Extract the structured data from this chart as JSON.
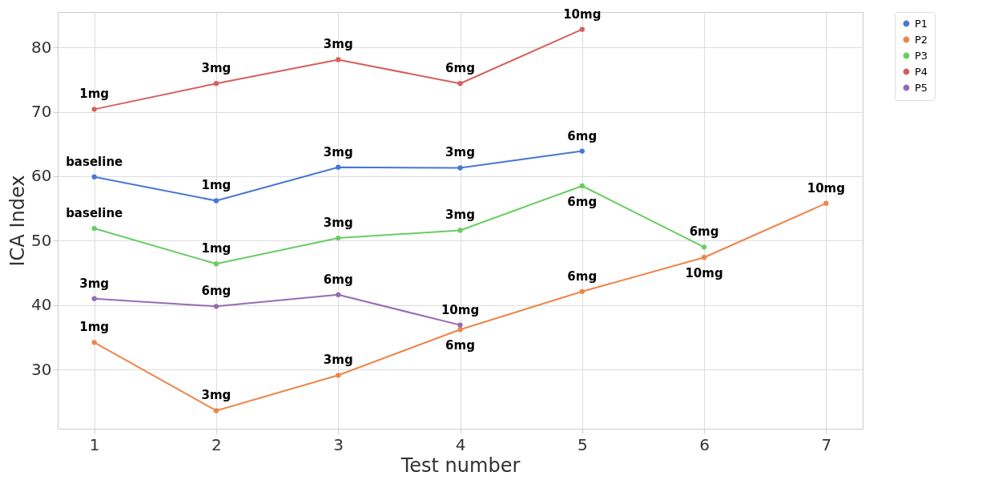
{
  "chart_data": {
    "type": "line",
    "xlabel": "Test number",
    "ylabel": "ICA Index",
    "x": [
      1,
      2,
      3,
      4,
      5,
      6,
      7
    ],
    "xlim": [
      0.7,
      7.3
    ],
    "xticks": [
      {
        "value": 1,
        "label": "1"
      },
      {
        "value": 2,
        "label": "2"
      },
      {
        "value": 3,
        "label": "3"
      },
      {
        "value": 4,
        "label": "4"
      },
      {
        "value": 5,
        "label": "5"
      },
      {
        "value": 6,
        "label": "6"
      },
      {
        "value": 7,
        "label": "7"
      }
    ],
    "ylim": [
      20.8,
      85.5
    ],
    "yticks": [
      30,
      40,
      50,
      60,
      70,
      80
    ],
    "grid": true,
    "legend": "top right",
    "marker": "circle",
    "line_style": "solid",
    "series": [
      {
        "name": "P1",
        "color": "#4878d0",
        "values": [
          59.9,
          56.2,
          61.4,
          61.3,
          63.9,
          null,
          null
        ]
      },
      {
        "name": "P2",
        "color": "#ee854a",
        "values": [
          34.2,
          23.6,
          29.1,
          36.2,
          42.1,
          47.4,
          55.8
        ]
      },
      {
        "name": "P3",
        "color": "#6acc64",
        "values": [
          51.9,
          46.4,
          50.4,
          51.6,
          58.5,
          49.0,
          null
        ]
      },
      {
        "name": "P4",
        "color": "#d65f5f",
        "values": [
          70.4,
          74.4,
          78.1,
          74.4,
          82.8,
          null,
          null
        ]
      },
      {
        "name": "P5",
        "color": "#956cb4",
        "values": [
          41.0,
          39.8,
          41.6,
          36.9,
          null,
          null,
          null
        ]
      }
    ],
    "annotations": [
      {
        "text": "1mg",
        "x": 1,
        "y": 70.4
      },
      {
        "text": "3mg",
        "x": 2,
        "y": 74.4
      },
      {
        "text": "3mg",
        "x": 3,
        "y": 78.1
      },
      {
        "text": "6mg",
        "x": 4,
        "y": 74.4
      },
      {
        "text": "10mg",
        "x": 5,
        "y": 82.8
      },
      {
        "text": "baseline",
        "x": 1,
        "y": 59.9
      },
      {
        "text": "1mg",
        "x": 2,
        "y": 56.2
      },
      {
        "text": "3mg",
        "x": 3,
        "y": 61.4
      },
      {
        "text": "3mg",
        "x": 4,
        "y": 61.3
      },
      {
        "text": "6mg",
        "x": 5,
        "y": 63.9
      },
      {
        "text": "baseline",
        "x": 1,
        "y": 51.9
      },
      {
        "text": "1mg",
        "x": 2,
        "y": 46.4
      },
      {
        "text": "3mg",
        "x": 3,
        "y": 50.4
      },
      {
        "text": "3mg",
        "x": 4,
        "y": 51.6
      },
      {
        "text": "6mg",
        "x": 5,
        "y": 58.5
      },
      {
        "text": "6mg",
        "x": 6,
        "y": 49.0
      },
      {
        "text": "3mg",
        "x": 1,
        "y": 41.0
      },
      {
        "text": "6mg",
        "x": 2,
        "y": 39.8
      },
      {
        "text": "6mg",
        "x": 3,
        "y": 41.6
      },
      {
        "text": "10mg",
        "x": 4,
        "y": 36.9
      },
      {
        "text": "1mg",
        "x": 1,
        "y": 34.2
      },
      {
        "text": "3mg",
        "x": 2,
        "y": 23.6
      },
      {
        "text": "3mg",
        "x": 3,
        "y": 29.1
      },
      {
        "text": "6mg",
        "x": 4,
        "y": 36.2
      },
      {
        "text": "6mg",
        "x": 5,
        "y": 42.1
      },
      {
        "text": "10mg",
        "x": 6,
        "y": 47.4
      },
      {
        "text": "10mg",
        "x": 7,
        "y": 55.8
      }
    ]
  }
}
